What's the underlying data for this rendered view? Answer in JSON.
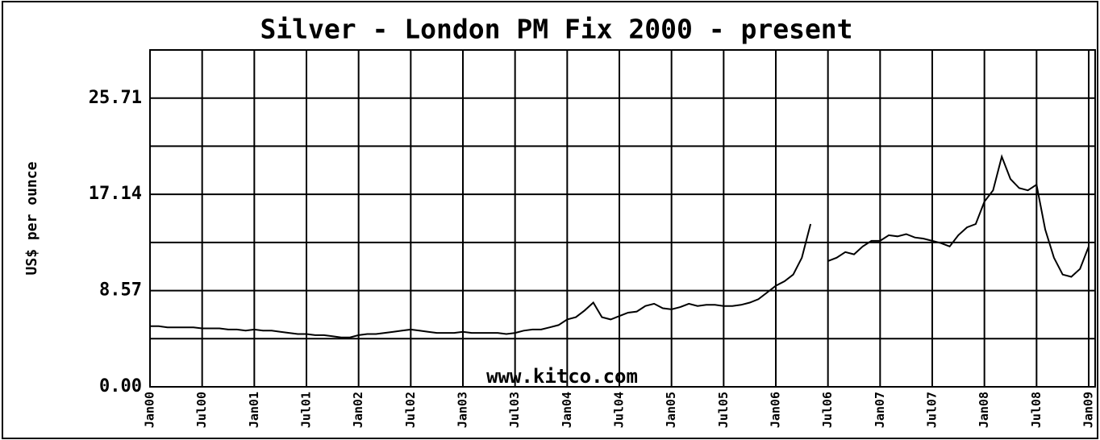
{
  "chart_data": {
    "type": "line",
    "title": "Silver - London PM Fix 2000 - present",
    "y_label": "US$ per ounce",
    "annotation": "www.kitco.com",
    "ylim": [
      0,
      30
    ],
    "yticks": [
      {
        "value": 0,
        "label": "0.00"
      },
      {
        "value": 8.57,
        "label": "8.57"
      },
      {
        "value": 17.14,
        "label": "17.14"
      },
      {
        "value": 25.71,
        "label": "25.71"
      }
    ],
    "minor_yticks": [
      4.29,
      12.86,
      21.43
    ],
    "xlim": [
      "2000-01",
      "2009-01"
    ],
    "xticks": [
      {
        "value": "2000-01",
        "label": "Jan00"
      },
      {
        "value": "2000-07",
        "label": "Jul00"
      },
      {
        "value": "2001-01",
        "label": "Jan01"
      },
      {
        "value": "2001-07",
        "label": "Jul01"
      },
      {
        "value": "2002-01",
        "label": "Jan02"
      },
      {
        "value": "2002-07",
        "label": "Jul02"
      },
      {
        "value": "2003-01",
        "label": "Jan03"
      },
      {
        "value": "2003-07",
        "label": "Jul03"
      },
      {
        "value": "2004-01",
        "label": "Jan04"
      },
      {
        "value": "2004-07",
        "label": "Jul04"
      },
      {
        "value": "2005-01",
        "label": "Jan05"
      },
      {
        "value": "2005-07",
        "label": "Jul05"
      },
      {
        "value": "2006-01",
        "label": "Jan06"
      },
      {
        "value": "2006-07",
        "label": "Jul06"
      },
      {
        "value": "2007-01",
        "label": "Jan07"
      },
      {
        "value": "2007-07",
        "label": "Jul07"
      },
      {
        "value": "2008-01",
        "label": "Jan08"
      },
      {
        "value": "2008-07",
        "label": "Jul08"
      },
      {
        "value": "2009-01",
        "label": "Jan09"
      }
    ],
    "grid": true,
    "color": "#000000",
    "x": [
      "2000-01",
      "2000-02",
      "2000-03",
      "2000-04",
      "2000-05",
      "2000-06",
      "2000-07",
      "2000-08",
      "2000-09",
      "2000-10",
      "2000-11",
      "2000-12",
      "2001-01",
      "2001-02",
      "2001-03",
      "2001-04",
      "2001-05",
      "2001-06",
      "2001-07",
      "2001-08",
      "2001-09",
      "2001-10",
      "2001-11",
      "2001-12",
      "2002-01",
      "2002-02",
      "2002-03",
      "2002-04",
      "2002-05",
      "2002-06",
      "2002-07",
      "2002-08",
      "2002-09",
      "2002-10",
      "2002-11",
      "2002-12",
      "2003-01",
      "2003-02",
      "2003-03",
      "2003-04",
      "2003-05",
      "2003-06",
      "2003-07",
      "2003-08",
      "2003-09",
      "2003-10",
      "2003-11",
      "2003-12",
      "2004-01",
      "2004-02",
      "2004-03",
      "2004-04",
      "2004-05",
      "2004-06",
      "2004-07",
      "2004-08",
      "2004-09",
      "2004-10",
      "2004-11",
      "2004-12",
      "2005-01",
      "2005-02",
      "2005-03",
      "2005-04",
      "2005-05",
      "2005-06",
      "2005-07",
      "2005-08",
      "2005-09",
      "2005-10",
      "2005-11",
      "2005-12",
      "2006-01",
      "2006-02",
      "2006-03",
      "2006-04",
      "2006-05",
      "2006-06",
      "2006-07",
      "2006-08",
      "2006-09",
      "2006-10",
      "2006-11",
      "2006-12",
      "2007-01",
      "2007-02",
      "2007-03",
      "2007-04",
      "2007-05",
      "2007-06",
      "2007-07",
      "2007-08",
      "2007-09",
      "2007-10",
      "2007-11",
      "2007-12",
      "2008-01",
      "2008-02",
      "2008-03",
      "2008-04",
      "2008-05",
      "2008-06",
      "2008-07",
      "2008-08",
      "2008-09",
      "2008-10",
      "2008-11",
      "2008-12",
      "2009-01"
    ],
    "values": [
      5.4,
      5.4,
      5.3,
      5.3,
      5.3,
      5.3,
      5.2,
      5.2,
      5.2,
      5.1,
      5.1,
      5.0,
      5.1,
      5.0,
      5.0,
      4.9,
      4.8,
      4.7,
      4.7,
      4.6,
      4.6,
      4.5,
      4.4,
      4.4,
      4.6,
      4.7,
      4.7,
      4.8,
      4.9,
      5.0,
      5.1,
      5.0,
      4.9,
      4.8,
      4.8,
      4.8,
      4.9,
      4.8,
      4.8,
      4.8,
      4.8,
      4.7,
      4.8,
      5.0,
      5.1,
      5.1,
      5.3,
      5.5,
      6.0,
      6.2,
      6.8,
      7.5,
      6.2,
      6.0,
      6.3,
      6.6,
      6.7,
      7.2,
      7.4,
      7.0,
      6.9,
      7.1,
      7.4,
      7.2,
      7.3,
      7.3,
      7.2,
      7.2,
      7.3,
      7.5,
      7.8,
      8.4,
      9.0,
      9.4,
      10.0,
      11.5,
      14.5,
      null,
      11.2,
      11.5,
      12.0,
      11.8,
      12.5,
      13.0,
      13.0,
      13.5,
      13.4,
      13.6,
      13.3,
      13.2,
      13.0,
      12.8,
      12.5,
      13.5,
      14.2,
      14.5,
      16.5,
      17.5,
      20.5,
      18.5,
      17.7,
      17.5,
      18.0,
      14.0,
      11.5,
      10.0,
      9.8,
      10.5,
      12.5
    ]
  }
}
